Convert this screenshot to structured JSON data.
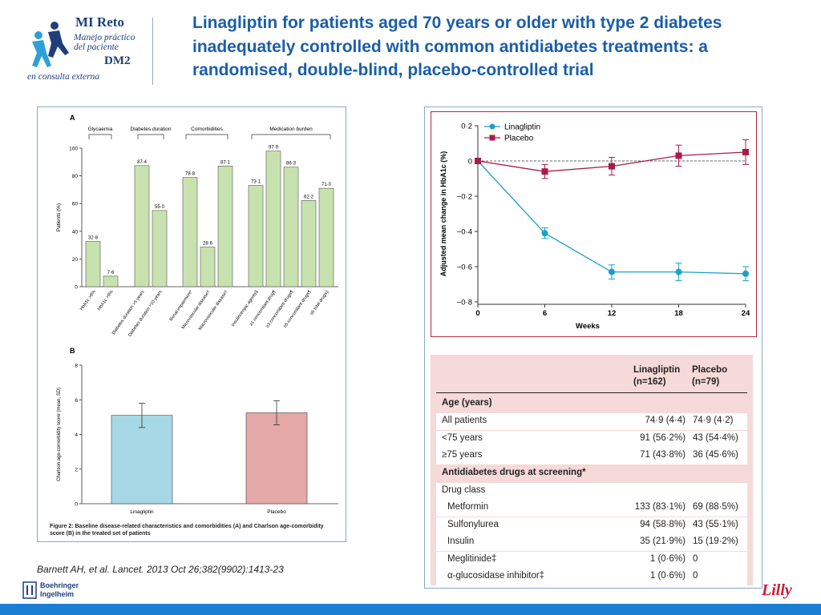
{
  "logo": {
    "line1": "MI Reto",
    "line2": "Manejo práctico",
    "line3": "del paciente",
    "line4": "DM2",
    "line5": "en consulta externa"
  },
  "title": "Linagliptin for patients aged 70 years or older with type 2 diabetes inadequately controlled with common antidiabetes treatments: a randomised, double-blind, placebo-controlled trial",
  "citation": "Barnett AH, et al. Lancet. 2013 Oct 26;382(9902):1413-23",
  "figure_caption": "Figure 2: Baseline disease-related characteristics and comorbidities (A) and Charlson age-comorbidity score (B) in the treated set of patients",
  "brand_colors": {
    "title": "#1a5ea8",
    "linagliptin": "#1aa0c8",
    "placebo": "#a81c48",
    "bar_green": "#c7e2ae",
    "bar_blue": "#a6d8e6",
    "bar_pink": "#e4a8a8"
  },
  "boehringer": {
    "line1": "Boehringer",
    "line2": "Ingelheim"
  },
  "lilly_logo": "Lilly",
  "chart_data": [
    {
      "type": "bar",
      "panel": "A",
      "ylabel": "Patients (%)",
      "ylim": [
        0,
        100
      ],
      "yticks": [
        "0",
        "20",
        "40",
        "60",
        "80",
        "100"
      ],
      "groups": [
        "Glycaemia",
        "Diabetes duration",
        "Comorbidities",
        "Medication burden"
      ],
      "categories": [
        "HbA1c >8%",
        "HbA1c >9%",
        "Diabetes duration >5 years",
        "Diabetes duration >10 years",
        "Renal impairment*",
        "Microvascular disease†",
        "Macrovascular disease†",
        "Insulinotropic agents§",
        "≥1 concomitant drug¶",
        "≥3 concomitant drugs¶",
        "≥5 concomitant drugs¶",
        "≥5 total drugs||"
      ],
      "values": [
        32.8,
        7.6,
        87.4,
        55.0,
        78.8,
        28.6,
        87.1,
        73.1,
        97.9,
        86.3,
        62.2,
        71.0
      ],
      "labels": [
        "32·8",
        "7·6",
        "87·4",
        "55·0",
        "78·8",
        "28·6",
        "87·1",
        "73·1",
        "97·9",
        "86·3",
        "62·2",
        "71·0"
      ]
    },
    {
      "type": "bar",
      "panel": "B",
      "ylabel": "Charlson age-comorbidity score (mean, SD)",
      "ylim": [
        0,
        8
      ],
      "yticks": [
        "0",
        "2",
        "4",
        "6",
        "8"
      ],
      "categories": [
        "Linagliptin",
        "Placebo"
      ],
      "values": [
        5.1,
        5.25
      ],
      "sd": [
        0.7,
        0.7
      ]
    },
    {
      "type": "line",
      "xlabel": "Weeks",
      "ylabel": "Adjusted mean change in HbA1c (%)",
      "ylim": [
        -0.8,
        0.2
      ],
      "x": [
        0,
        6,
        12,
        18,
        24
      ],
      "xticks": [
        "0",
        "6",
        "12",
        "18",
        "24"
      ],
      "yticks": [
        "0·2",
        "0",
        "−0·2",
        "−0·4",
        "−0·6",
        "−0·8"
      ],
      "series": [
        {
          "name": "Linagliptin",
          "values": [
            0,
            -0.41,
            -0.63,
            -0.63,
            -0.64
          ],
          "err": [
            0,
            0.03,
            0.04,
            0.05,
            0.04
          ]
        },
        {
          "name": "Placebo",
          "values": [
            0,
            -0.06,
            -0.03,
            0.03,
            0.05
          ],
          "err": [
            0,
            0.04,
            0.05,
            0.06,
            0.07
          ]
        }
      ]
    }
  ],
  "table": {
    "headers": [
      "",
      "Linagliptin (n=162)",
      "Placebo (n=79)"
    ],
    "rows": [
      {
        "label": "Age (years)",
        "lin": "",
        "pla": "",
        "kind": "section"
      },
      {
        "label": "All patients",
        "lin": "74·9 (4·4)",
        "pla": "74·9 (4·2)",
        "kind": "row"
      },
      {
        "label": "<75 years",
        "lin": "91 (56·2%)",
        "pla": "43 (54·4%)",
        "kind": "row"
      },
      {
        "label": "≥75 years",
        "lin": "71 (43·8%)",
        "pla": "36 (45·6%)",
        "kind": "row"
      },
      {
        "label": "Antidiabetes drugs at screening*",
        "lin": "",
        "pla": "",
        "kind": "section"
      },
      {
        "label": "Drug class",
        "lin": "",
        "pla": "",
        "kind": "row"
      },
      {
        "label": "Metformin",
        "lin": "133 (83·1%)",
        "pla": "69 (88·5%)",
        "kind": "sub"
      },
      {
        "label": "Sulfonylurea",
        "lin": "94 (58·8%)",
        "pla": "43 (55·1%)",
        "kind": "sub"
      },
      {
        "label": "Insulin",
        "lin": "35 (21·9%)",
        "pla": "15 (19·2%)",
        "kind": "sub"
      },
      {
        "label": "Meglitinide‡",
        "lin": "1 (0·6%)",
        "pla": "0",
        "kind": "sub"
      },
      {
        "label": "α-glucosidase inhibitor‡",
        "lin": "1 (0·6%)",
        "pla": "0",
        "kind": "sub"
      }
    ]
  }
}
